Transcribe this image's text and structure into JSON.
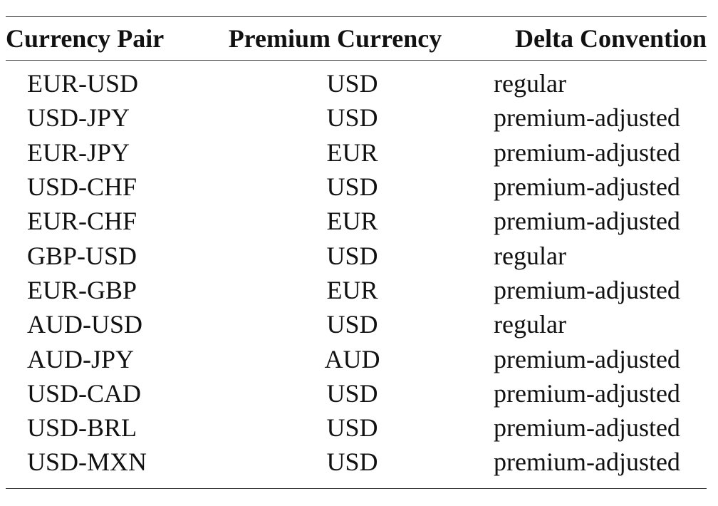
{
  "table": {
    "headers": {
      "pair": "Currency Pair",
      "premium": "Premium Currency",
      "delta": "Delta Convention"
    },
    "rows": [
      {
        "pair": "EUR-USD",
        "premium": "USD",
        "delta": "regular"
      },
      {
        "pair": "USD-JPY",
        "premium": "USD",
        "delta": "premium-adjusted"
      },
      {
        "pair": "EUR-JPY",
        "premium": "EUR",
        "delta": "premium-adjusted"
      },
      {
        "pair": "USD-CHF",
        "premium": "USD",
        "delta": "premium-adjusted"
      },
      {
        "pair": "EUR-CHF",
        "premium": "EUR",
        "delta": "premium-adjusted"
      },
      {
        "pair": "GBP-USD",
        "premium": "USD",
        "delta": "regular"
      },
      {
        "pair": "EUR-GBP",
        "premium": "EUR",
        "delta": "premium-adjusted"
      },
      {
        "pair": "AUD-USD",
        "premium": "USD",
        "delta": "regular"
      },
      {
        "pair": "AUD-JPY",
        "premium": "AUD",
        "delta": "premium-adjusted"
      },
      {
        "pair": "USD-CAD",
        "premium": "USD",
        "delta": "premium-adjusted"
      },
      {
        "pair": "USD-BRL",
        "premium": "USD",
        "delta": "premium-adjusted"
      },
      {
        "pair": "USD-MXN",
        "premium": "USD",
        "delta": "premium-adjusted"
      }
    ]
  }
}
